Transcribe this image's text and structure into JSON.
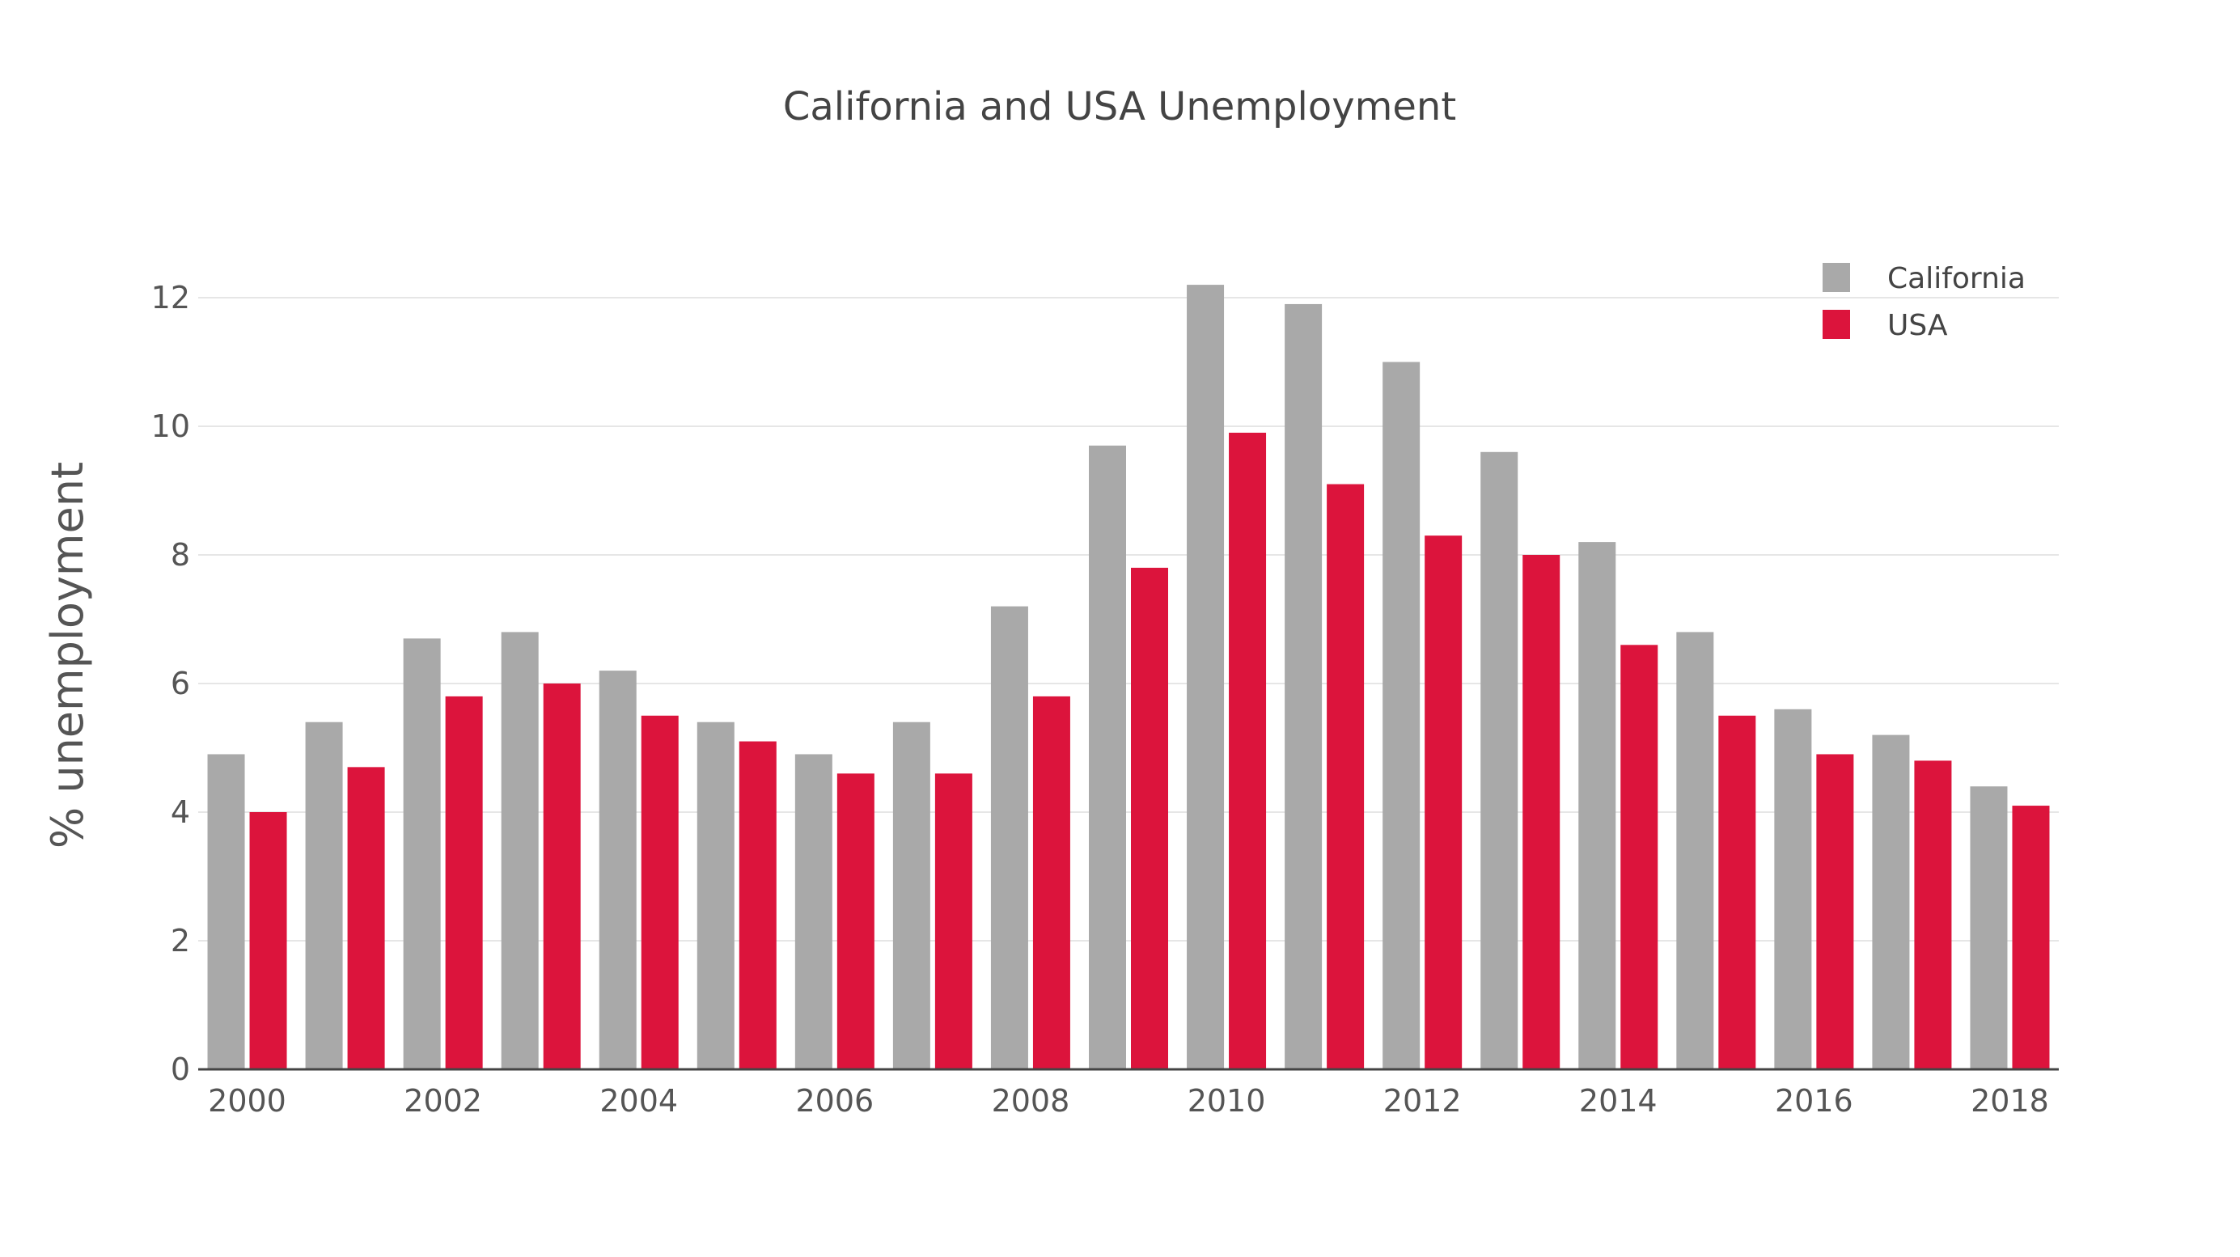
{
  "chart_data": {
    "type": "bar",
    "title": "California and USA Unemployment",
    "xlabel": "",
    "ylabel": "% unemployment",
    "categories": [
      "2000",
      "2001",
      "2002",
      "2003",
      "2004",
      "2005",
      "2006",
      "2007",
      "2008",
      "2009",
      "2010",
      "2011",
      "2012",
      "2013",
      "2014",
      "2015",
      "2016",
      "2017",
      "2018"
    ],
    "x_tick_labels": [
      "2000",
      "2002",
      "2004",
      "2006",
      "2008",
      "2010",
      "2012",
      "2014",
      "2016",
      "2018"
    ],
    "y_tick_labels": [
      "0",
      "2",
      "4",
      "6",
      "8",
      "10",
      "12"
    ],
    "ylim": [
      0,
      13
    ],
    "grid": true,
    "legend_position": "top-right",
    "series": [
      {
        "name": "California",
        "color": "#a9a9a9",
        "values": [
          4.9,
          5.4,
          6.7,
          6.8,
          6.2,
          5.4,
          4.9,
          5.4,
          7.2,
          9.7,
          12.2,
          11.9,
          11.0,
          9.6,
          8.2,
          6.8,
          5.6,
          5.2,
          4.4
        ]
      },
      {
        "name": "USA",
        "color": "#dc143c",
        "values": [
          4.0,
          4.7,
          5.8,
          6.0,
          5.5,
          5.1,
          4.6,
          4.6,
          5.8,
          7.8,
          9.9,
          9.1,
          8.3,
          8.0,
          6.6,
          5.5,
          4.9,
          4.8,
          4.1
        ]
      }
    ]
  }
}
